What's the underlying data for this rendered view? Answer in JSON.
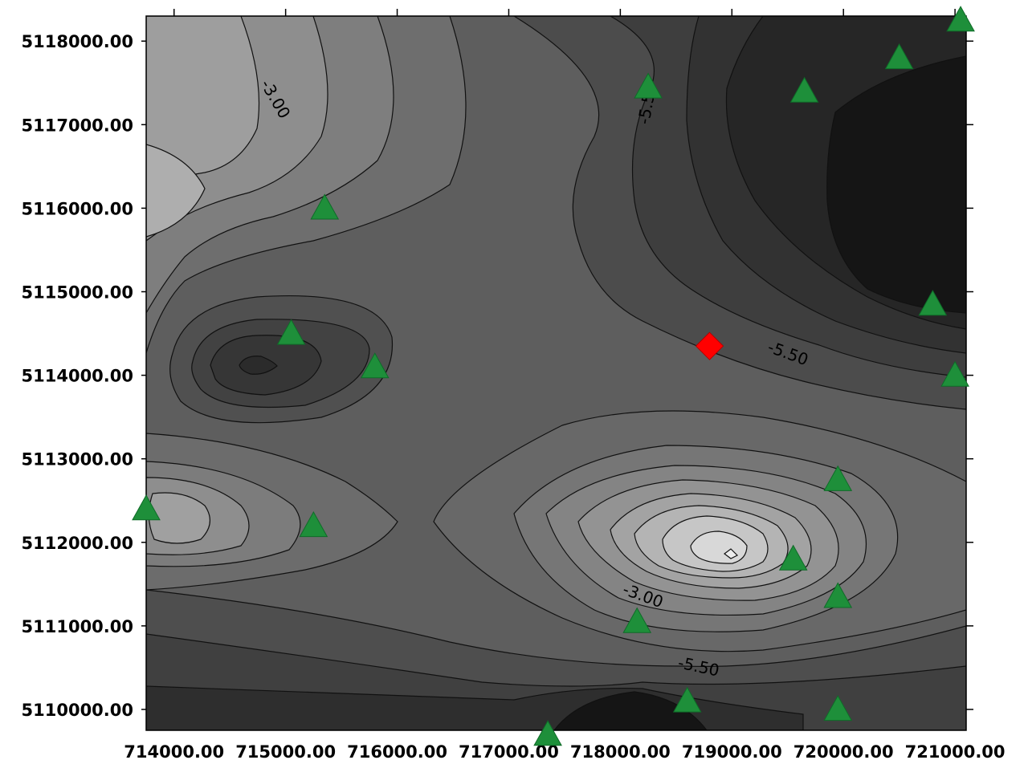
{
  "chart_data": {
    "type": "contour",
    "xlim": [
      713750,
      721100
    ],
    "ylim": [
      5109750,
      5118300
    ],
    "x_ticks": [
      714000,
      715000,
      716000,
      717000,
      718000,
      719000,
      720000,
      721000
    ],
    "x_tick_labels": [
      "714000.00",
      "715000.00",
      "716000.00",
      "717000.00",
      "718000.00",
      "719000.00",
      "720000.00",
      "721000.00"
    ],
    "y_ticks": [
      5110000,
      5111000,
      5112000,
      5113000,
      5114000,
      5115000,
      5116000,
      5117000,
      5118000
    ],
    "y_tick_labels": [
      "5110000.00",
      "5111000.00",
      "5112000.00",
      "5113000.00",
      "5114000.00",
      "5115000.00",
      "5116000.00",
      "5117000.00",
      "5118000.00"
    ],
    "contour_labels": [
      {
        "text": "-3.00",
        "x": 714900,
        "y": 5117300,
        "angle": 60
      },
      {
        "text": "-5.50",
        "x": 718250,
        "y": 5117250,
        "angle": -80
      },
      {
        "text": "-5.50",
        "x": 719500,
        "y": 5114250,
        "angle": 20
      },
      {
        "text": "-3.00",
        "x": 718200,
        "y": 5111350,
        "angle": 20
      },
      {
        "text": "-5.50",
        "x": 718700,
        "y": 5110500,
        "angle": 12
      }
    ],
    "stations": [
      {
        "x": 721050,
        "y": 5118250
      },
      {
        "x": 720500,
        "y": 5117800
      },
      {
        "x": 719650,
        "y": 5117400
      },
      {
        "x": 718250,
        "y": 5117450
      },
      {
        "x": 715350,
        "y": 5116000
      },
      {
        "x": 720800,
        "y": 5114850
      },
      {
        "x": 715050,
        "y": 5114500
      },
      {
        "x": 715800,
        "y": 5114100
      },
      {
        "x": 721000,
        "y": 5114000
      },
      {
        "x": 719950,
        "y": 5112750
      },
      {
        "x": 713750,
        "y": 5112400
      },
      {
        "x": 715250,
        "y": 5112200
      },
      {
        "x": 719550,
        "y": 5111800
      },
      {
        "x": 719950,
        "y": 5111350
      },
      {
        "x": 718150,
        "y": 5111050
      },
      {
        "x": 718600,
        "y": 5110100
      },
      {
        "x": 719950,
        "y": 5110000
      },
      {
        "x": 717350,
        "y": 5109700
      }
    ],
    "marker": {
      "x": 718800,
      "y": 5114350
    },
    "colors": {
      "station": "#1e8f3a",
      "marker": "#ff0000",
      "fill_light": "#e8e8e8",
      "fill_dark": "#1a1a1a"
    }
  }
}
